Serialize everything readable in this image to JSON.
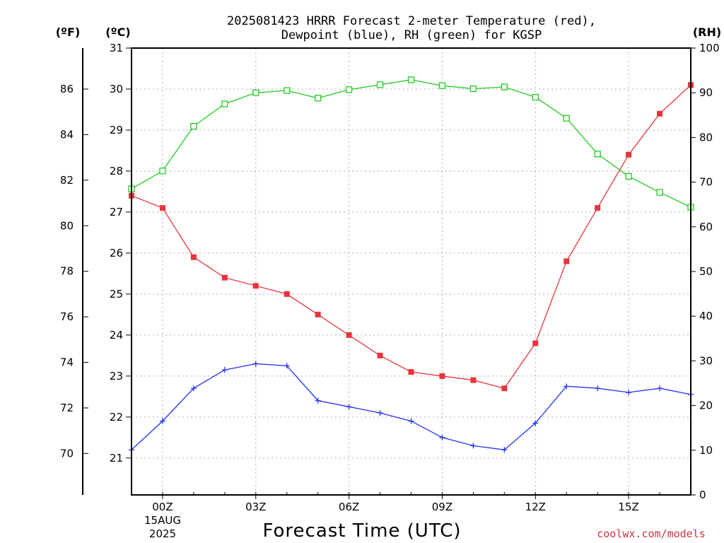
{
  "title_line1": "2025081423 HRRR Forecast 2-meter Temperature (red),",
  "title_line2": "Dewpoint (blue), RH (green) for KGSP",
  "unit_f": "(ºF)",
  "unit_c": "(ºC)",
  "unit_rh": "(RH)",
  "xlabel": "Forecast Time (UTC)",
  "credit": "coolwx.com/models",
  "date_line1": "15AUG",
  "date_line2": "2025",
  "chart_data": {
    "type": "line",
    "x_start_hour": -1,
    "x_end_hour": 17,
    "x_ticks": [
      {
        "hour": 0,
        "label": "00Z"
      },
      {
        "hour": 3,
        "label": "03Z"
      },
      {
        "hour": 6,
        "label": "06Z"
      },
      {
        "hour": 9,
        "label": "09Z"
      },
      {
        "hour": 12,
        "label": "12Z"
      },
      {
        "hour": 15,
        "label": "15Z"
      }
    ],
    "celsius_ylim": [
      20.1,
      31
    ],
    "celsius_ticks": [
      21,
      22,
      23,
      24,
      25,
      26,
      27,
      28,
      29,
      30,
      31
    ],
    "fahrenheit_ticks": [
      70,
      72,
      74,
      76,
      78,
      80,
      82,
      84,
      86
    ],
    "rh_ylim": [
      0,
      100
    ],
    "rh_ticks": [
      0,
      10,
      20,
      30,
      40,
      50,
      60,
      70,
      80,
      90,
      100
    ],
    "hours": [
      -1,
      0,
      1,
      2,
      3,
      4,
      5,
      6,
      7,
      8,
      9,
      10,
      11,
      12,
      13,
      14,
      15,
      16,
      17
    ],
    "series": [
      {
        "axis": "celsius",
        "color": "#e8343c",
        "marker": "filled-square",
        "values": [
          27.4,
          27.1,
          25.9,
          25.4,
          25.2,
          25.0,
          24.5,
          24.0,
          23.5,
          23.1,
          23.0,
          22.9,
          22.7,
          23.8,
          25.8,
          27.1,
          28.4,
          29.4,
          30.1
        ]
      },
      {
        "axis": "celsius",
        "color": "#2233ee",
        "marker": "plus",
        "values": [
          21.2,
          21.9,
          22.7,
          23.15,
          23.3,
          23.25,
          22.4,
          22.25,
          22.1,
          21.9,
          21.5,
          21.3,
          21.2,
          21.85,
          22.75,
          22.7,
          22.6,
          22.7,
          22.55
        ]
      },
      {
        "axis": "rh",
        "color": "#22cc22",
        "marker": "open-square",
        "values": [
          68.5,
          72.5,
          82.5,
          87.5,
          90,
          90.5,
          88.8,
          90.7,
          91.8,
          92.9,
          91.6,
          90.9,
          91.3,
          89,
          84.3,
          76.3,
          71.3,
          67.7,
          64.4
        ]
      }
    ]
  }
}
